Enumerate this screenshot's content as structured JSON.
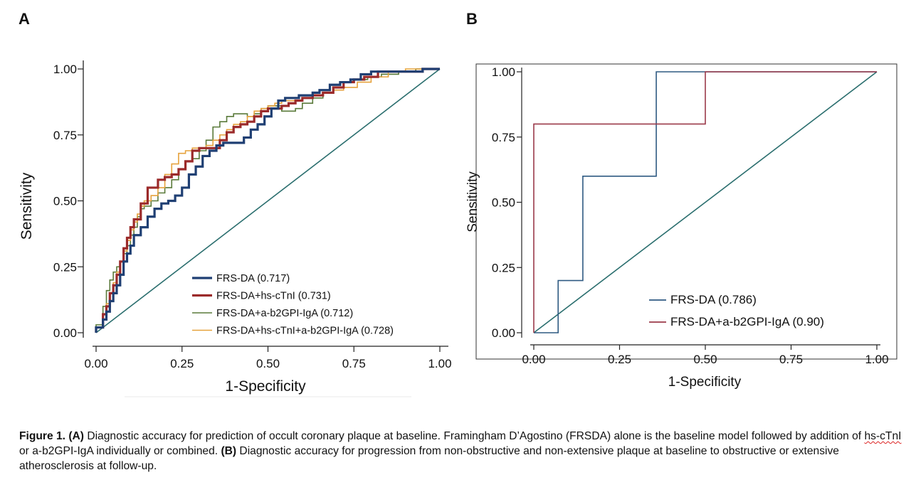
{
  "panels": {
    "a": "A",
    "b": "B"
  },
  "chart_data": [
    {
      "type": "line",
      "panel": "A",
      "xlabel": "1-Specificity",
      "ylabel": "Sensitivity",
      "xlim": [
        0,
        1
      ],
      "ylim": [
        0,
        1
      ],
      "xticks": [
        "0.00",
        "0.25",
        "0.50",
        "0.75",
        "1.00"
      ],
      "yticks": [
        "0.00",
        "0.25",
        "0.50",
        "0.75",
        "1.00"
      ],
      "reference_line": [
        [
          0,
          0
        ],
        [
          1,
          1
        ]
      ],
      "reference_color": "#2a6e6e",
      "series": [
        {
          "name": "FRS-DA (0.717)",
          "color": "#1f3f73",
          "width": 3.2,
          "points": [
            [
              0,
              0
            ],
            [
              0.02,
              0.02
            ],
            [
              0.03,
              0.05
            ],
            [
              0.04,
              0.08
            ],
            [
              0.05,
              0.12
            ],
            [
              0.06,
              0.15
            ],
            [
              0.07,
              0.18
            ],
            [
              0.08,
              0.22
            ],
            [
              0.09,
              0.27
            ],
            [
              0.1,
              0.3
            ],
            [
              0.11,
              0.33
            ],
            [
              0.13,
              0.37
            ],
            [
              0.15,
              0.4
            ],
            [
              0.17,
              0.44
            ],
            [
              0.19,
              0.47
            ],
            [
              0.21,
              0.49
            ],
            [
              0.23,
              0.5
            ],
            [
              0.25,
              0.52
            ],
            [
              0.27,
              0.55
            ],
            [
              0.29,
              0.6
            ],
            [
              0.31,
              0.63
            ],
            [
              0.33,
              0.67
            ],
            [
              0.35,
              0.69
            ],
            [
              0.37,
              0.71
            ],
            [
              0.39,
              0.72
            ],
            [
              0.41,
              0.72
            ],
            [
              0.43,
              0.72
            ],
            [
              0.45,
              0.74
            ],
            [
              0.47,
              0.77
            ],
            [
              0.49,
              0.79
            ],
            [
              0.51,
              0.82
            ],
            [
              0.53,
              0.85
            ],
            [
              0.55,
              0.88
            ],
            [
              0.57,
              0.89
            ],
            [
              0.59,
              0.89
            ],
            [
              0.61,
              0.9
            ],
            [
              0.63,
              0.9
            ],
            [
              0.65,
              0.91
            ],
            [
              0.68,
              0.92
            ],
            [
              0.71,
              0.94
            ],
            [
              0.74,
              0.95
            ],
            [
              0.77,
              0.96
            ],
            [
              0.8,
              0.98
            ],
            [
              0.83,
              0.99
            ],
            [
              0.87,
              0.99
            ],
            [
              0.91,
              0.99
            ],
            [
              0.95,
              0.99
            ],
            [
              0.97,
              1.0
            ],
            [
              1,
              1
            ]
          ]
        },
        {
          "name": "FRS-DA+hs-cTnI (0.731)",
          "color": "#9b2a2a",
          "width": 3.2,
          "points": [
            [
              0,
              0
            ],
            [
              0.02,
              0.02
            ],
            [
              0.03,
              0.07
            ],
            [
              0.04,
              0.1
            ],
            [
              0.05,
              0.15
            ],
            [
              0.06,
              0.18
            ],
            [
              0.07,
              0.22
            ],
            [
              0.08,
              0.27
            ],
            [
              0.09,
              0.32
            ],
            [
              0.1,
              0.36
            ],
            [
              0.11,
              0.4
            ],
            [
              0.13,
              0.43
            ],
            [
              0.15,
              0.49
            ],
            [
              0.16,
              0.55
            ],
            [
              0.18,
              0.55
            ],
            [
              0.2,
              0.58
            ],
            [
              0.22,
              0.59
            ],
            [
              0.24,
              0.6
            ],
            [
              0.26,
              0.62
            ],
            [
              0.28,
              0.65
            ],
            [
              0.3,
              0.69
            ],
            [
              0.32,
              0.7
            ],
            [
              0.34,
              0.7
            ],
            [
              0.36,
              0.7
            ],
            [
              0.38,
              0.73
            ],
            [
              0.4,
              0.76
            ],
            [
              0.42,
              0.78
            ],
            [
              0.44,
              0.79
            ],
            [
              0.46,
              0.8
            ],
            [
              0.48,
              0.82
            ],
            [
              0.5,
              0.84
            ],
            [
              0.52,
              0.85
            ],
            [
              0.54,
              0.85
            ],
            [
              0.56,
              0.86
            ],
            [
              0.58,
              0.87
            ],
            [
              0.6,
              0.88
            ],
            [
              0.63,
              0.89
            ],
            [
              0.66,
              0.9
            ],
            [
              0.69,
              0.91
            ],
            [
              0.72,
              0.93
            ],
            [
              0.75,
              0.95
            ],
            [
              0.78,
              0.96
            ],
            [
              0.82,
              0.97
            ],
            [
              0.86,
              0.99
            ],
            [
              0.9,
              0.99
            ],
            [
              0.95,
              0.99
            ],
            [
              1,
              1
            ]
          ]
        },
        {
          "name": "FRS-DA+a-b2GPI-IgA (0.712)",
          "color": "#5a7a3a",
          "width": 1.6,
          "points": [
            [
              0,
              0
            ],
            [
              0.02,
              0.03
            ],
            [
              0.03,
              0.1
            ],
            [
              0.04,
              0.16
            ],
            [
              0.05,
              0.2
            ],
            [
              0.06,
              0.23
            ],
            [
              0.07,
              0.25
            ],
            [
              0.08,
              0.27
            ],
            [
              0.09,
              0.3
            ],
            [
              0.1,
              0.33
            ],
            [
              0.11,
              0.37
            ],
            [
              0.12,
              0.4
            ],
            [
              0.13,
              0.44
            ],
            [
              0.14,
              0.47
            ],
            [
              0.16,
              0.48
            ],
            [
              0.18,
              0.5
            ],
            [
              0.2,
              0.53
            ],
            [
              0.22,
              0.55
            ],
            [
              0.24,
              0.58
            ],
            [
              0.26,
              0.62
            ],
            [
              0.28,
              0.65
            ],
            [
              0.3,
              0.66
            ],
            [
              0.32,
              0.69
            ],
            [
              0.34,
              0.73
            ],
            [
              0.36,
              0.78
            ],
            [
              0.38,
              0.8
            ],
            [
              0.4,
              0.82
            ],
            [
              0.42,
              0.83
            ],
            [
              0.44,
              0.83
            ],
            [
              0.46,
              0.82
            ],
            [
              0.48,
              0.83
            ],
            [
              0.5,
              0.85
            ],
            [
              0.52,
              0.86
            ],
            [
              0.54,
              0.86
            ],
            [
              0.56,
              0.84
            ],
            [
              0.58,
              0.84
            ],
            [
              0.6,
              0.85
            ],
            [
              0.63,
              0.87
            ],
            [
              0.66,
              0.89
            ],
            [
              0.69,
              0.91
            ],
            [
              0.72,
              0.93
            ],
            [
              0.75,
              0.95
            ],
            [
              0.79,
              0.96
            ],
            [
              0.83,
              0.97
            ],
            [
              0.88,
              0.98
            ],
            [
              0.93,
              0.99
            ],
            [
              1,
              1
            ]
          ]
        },
        {
          "name": "FRS-DA+hs-cTnI+a-b2GPI-IgA (0.728)",
          "color": "#e6a23c",
          "width": 1.6,
          "points": [
            [
              0,
              0
            ],
            [
              0.02,
              0.02
            ],
            [
              0.03,
              0.07
            ],
            [
              0.04,
              0.11
            ],
            [
              0.05,
              0.15
            ],
            [
              0.06,
              0.19
            ],
            [
              0.07,
              0.23
            ],
            [
              0.08,
              0.27
            ],
            [
              0.09,
              0.31
            ],
            [
              0.1,
              0.35
            ],
            [
              0.11,
              0.39
            ],
            [
              0.12,
              0.42
            ],
            [
              0.13,
              0.45
            ],
            [
              0.14,
              0.48
            ],
            [
              0.16,
              0.5
            ],
            [
              0.18,
              0.52
            ],
            [
              0.2,
              0.55
            ],
            [
              0.22,
              0.6
            ],
            [
              0.24,
              0.64
            ],
            [
              0.26,
              0.68
            ],
            [
              0.28,
              0.69
            ],
            [
              0.3,
              0.7
            ],
            [
              0.32,
              0.7
            ],
            [
              0.34,
              0.71
            ],
            [
              0.36,
              0.73
            ],
            [
              0.38,
              0.75
            ],
            [
              0.4,
              0.77
            ],
            [
              0.42,
              0.79
            ],
            [
              0.44,
              0.8
            ],
            [
              0.46,
              0.82
            ],
            [
              0.48,
              0.84
            ],
            [
              0.5,
              0.85
            ],
            [
              0.52,
              0.86
            ],
            [
              0.54,
              0.87
            ],
            [
              0.56,
              0.88
            ],
            [
              0.58,
              0.88
            ],
            [
              0.6,
              0.88
            ],
            [
              0.63,
              0.89
            ],
            [
              0.66,
              0.9
            ],
            [
              0.69,
              0.91
            ],
            [
              0.72,
              0.92
            ],
            [
              0.76,
              0.93
            ],
            [
              0.8,
              0.95
            ],
            [
              0.85,
              0.97
            ],
            [
              0.9,
              0.99
            ],
            [
              0.95,
              1.0
            ],
            [
              1,
              1
            ]
          ]
        }
      ]
    },
    {
      "type": "line",
      "panel": "B",
      "xlabel": "1-Specificity",
      "ylabel": "Sensitivity",
      "xlim": [
        0,
        1
      ],
      "ylim": [
        0,
        1
      ],
      "xticks": [
        "0.00",
        "0.25",
        "0.50",
        "0.75",
        "1.00"
      ],
      "yticks": [
        "0.00",
        "0.25",
        "0.50",
        "0.75",
        "1.00"
      ],
      "reference_line": [
        [
          0,
          0
        ],
        [
          1,
          1
        ]
      ],
      "reference_color": "#2a6e6e",
      "series": [
        {
          "name": "FRS-DA (0.786)",
          "color": "#2f5a82",
          "width": 1.6,
          "points": [
            [
              0,
              0
            ],
            [
              0.071,
              0
            ],
            [
              0.071,
              0.2
            ],
            [
              0.143,
              0.2
            ],
            [
              0.143,
              0.6
            ],
            [
              0.357,
              0.6
            ],
            [
              0.357,
              1.0
            ],
            [
              1,
              1
            ]
          ]
        },
        {
          "name": "FRS-DA+a-b2GPI-IgA (0.90)",
          "color": "#9b3a4a",
          "width": 1.6,
          "points": [
            [
              0,
              0
            ],
            [
              0,
              0.8
            ],
            [
              0.5,
              0.8
            ],
            [
              0.5,
              1.0
            ],
            [
              1,
              1
            ]
          ]
        }
      ]
    }
  ],
  "caption": {
    "label": "Figure 1.",
    "part_a_tag": "(A)",
    "part_a_text": " Diagnostic accuracy for prediction of occult coronary plaque at baseline. Framingham D’Agostino (FRSDA) alone is the baseline model followed by addition of ",
    "squiggle_term": "hs-cTnI",
    "part_a_tail": " or a-b2GPI-IgA individually or combined. ",
    "part_b_tag": "(B)",
    "part_b_text": "  Diagnostic accuracy for progression from non-obstructive and non-extensive plaque at baseline to obstructive or extensive atherosclerosis at follow-up."
  }
}
